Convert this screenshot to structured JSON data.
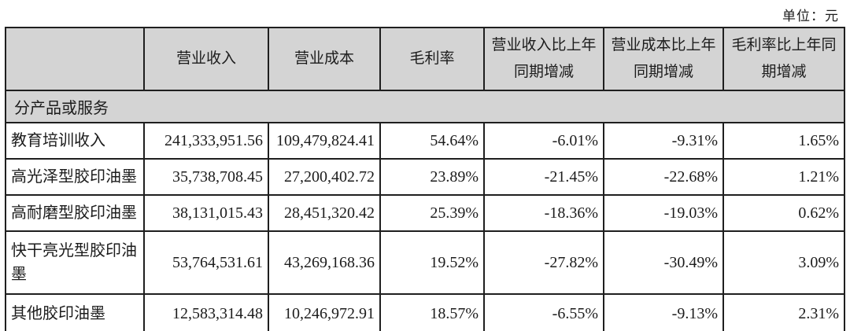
{
  "unit_label": "单位：元",
  "colors": {
    "header_bg": "#d4d4d4",
    "border": "#1f1f1f",
    "page_bg": "#ffffff",
    "text": "#1c1c1c"
  },
  "table": {
    "headers": {
      "corner": "",
      "revenue": "营业收入",
      "cost": "营业成本",
      "margin": "毛利率",
      "revenue_yoy": "营业收入比上年同期增减",
      "cost_yoy": "营业成本比上年同期增减",
      "margin_yoy": "毛利率比上年同期增减"
    },
    "section_label": "分产品或服务",
    "rows": [
      {
        "label": "教育培训收入",
        "revenue": "241,333,951.56",
        "cost": "109,479,824.41",
        "margin": "54.64%",
        "revenue_yoy": "-6.01%",
        "cost_yoy": "-9.31%",
        "margin_yoy": "1.65%"
      },
      {
        "label": "高光泽型胶印油墨",
        "revenue": "35,738,708.45",
        "cost": "27,200,402.72",
        "margin": "23.89%",
        "revenue_yoy": "-21.45%",
        "cost_yoy": "-22.68%",
        "margin_yoy": "1.21%"
      },
      {
        "label": "高耐磨型胶印油墨",
        "revenue": "38,131,015.43",
        "cost": "28,451,320.42",
        "margin": "25.39%",
        "revenue_yoy": "-18.36%",
        "cost_yoy": "-19.03%",
        "margin_yoy": "0.62%"
      },
      {
        "label": "快干亮光型胶印油墨",
        "revenue": "53,764,531.61",
        "cost": "43,269,168.36",
        "margin": "19.52%",
        "revenue_yoy": "-27.82%",
        "cost_yoy": "-30.49%",
        "margin_yoy": "3.09%"
      },
      {
        "label": "其他胶印油墨",
        "revenue": "12,583,314.48",
        "cost": "10,246,972.91",
        "margin": "18.57%",
        "revenue_yoy": "-6.55%",
        "cost_yoy": "-9.13%",
        "margin_yoy": "2.31%"
      }
    ]
  }
}
